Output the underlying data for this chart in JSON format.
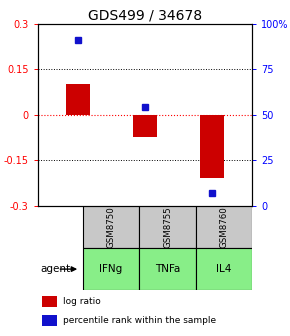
{
  "title": "GDS499 / 34678",
  "categories": [
    "IFNg",
    "TNFa",
    "IL4"
  ],
  "sample_labels": [
    "GSM8750",
    "GSM8755",
    "GSM8760"
  ],
  "log_ratios": [
    0.1,
    -0.075,
    -0.21
  ],
  "percentile_ranks": [
    91,
    54,
    7
  ],
  "ylim_left": [
    -0.3,
    0.3
  ],
  "ylim_right": [
    0,
    100
  ],
  "left_ticks": [
    -0.3,
    -0.15,
    0,
    0.15,
    0.3
  ],
  "right_ticks": [
    0,
    25,
    50,
    75,
    100
  ],
  "right_tick_labels": [
    "0",
    "25",
    "50",
    "75",
    "100%"
  ],
  "bar_color": "#cc0000",
  "dot_color": "#1111cc",
  "sample_box_color": "#c8c8c8",
  "agent_box_color": "#88ee88",
  "agent_label": "agent",
  "legend_bar_label": "log ratio",
  "legend_dot_label": "percentile rank within the sample",
  "title_fontsize": 10,
  "tick_fontsize": 7,
  "bar_width": 0.35
}
